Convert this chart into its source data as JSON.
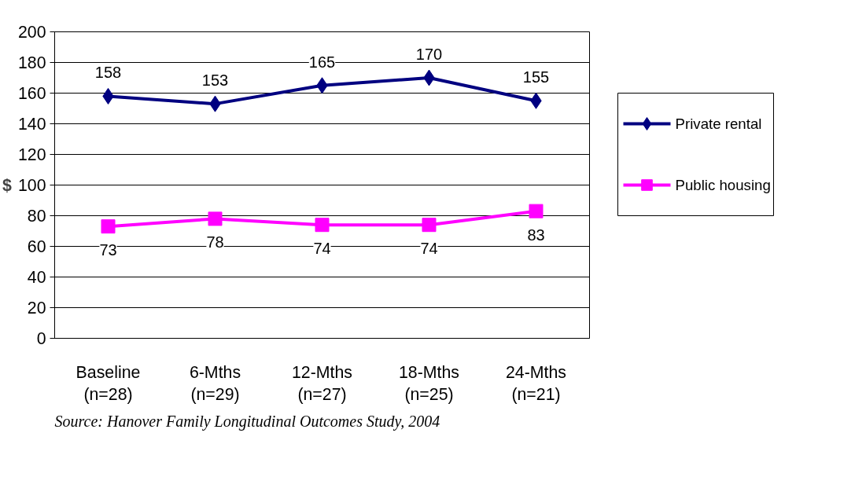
{
  "chart_data": {
    "type": "line",
    "ylabel": "$",
    "categories": [
      "Baseline\n(n=28)",
      "6-Mths\n(n=29)",
      "12-Mths\n(n=27)",
      "18-Mths\n(n=25)",
      "24-Mths\n(n=21)"
    ],
    "series": [
      {
        "name": "Private rental",
        "color": "#000080",
        "marker": "diamond",
        "values": [
          158,
          153,
          165,
          170,
          155
        ]
      },
      {
        "name": "Public housing",
        "color": "#ff00ff",
        "marker": "square",
        "values": [
          73,
          78,
          74,
          74,
          83
        ]
      }
    ],
    "ylim": [
      0,
      200
    ],
    "yticks": [
      0,
      20,
      40,
      60,
      80,
      100,
      120,
      140,
      160,
      180,
      200
    ],
    "grid": "y",
    "legend": "right",
    "data_labels": true,
    "line_style": "solid",
    "annotations": [
      "Source: Hanover Family Longitudinal Outcomes Study, 2004"
    ]
  }
}
